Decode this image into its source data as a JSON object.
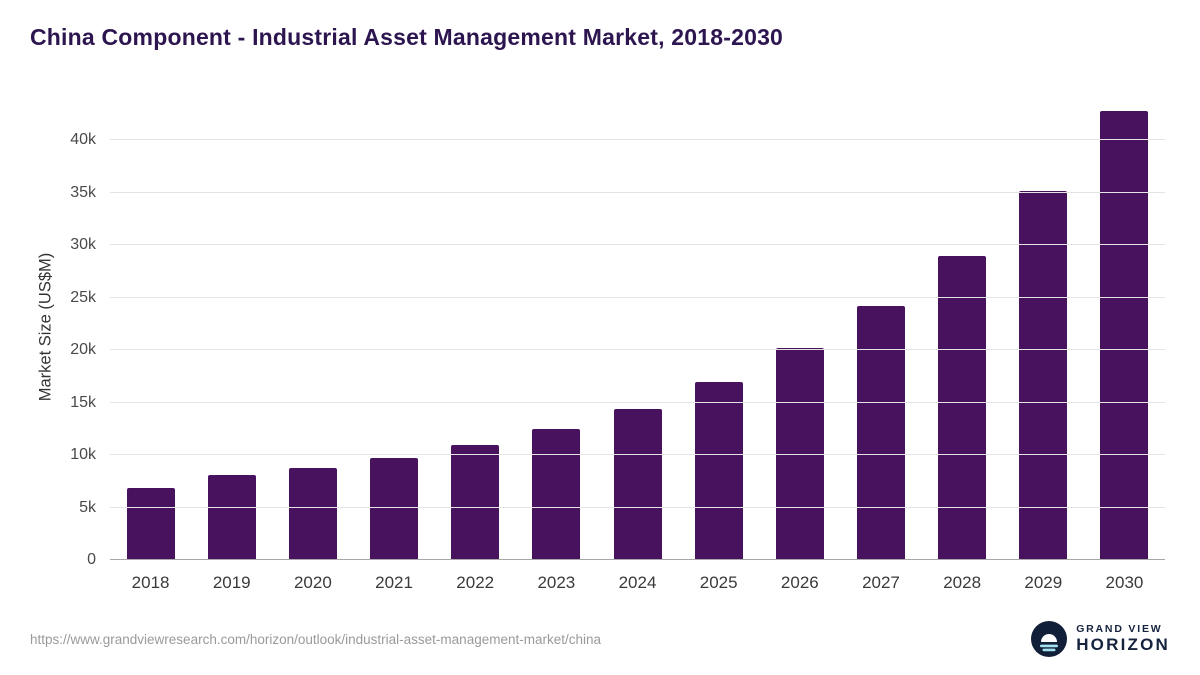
{
  "header": {
    "title": "China Component - Industrial Asset Management Market, 2018-2030"
  },
  "chart_data": {
    "type": "bar",
    "title": "China Component - Industrial Asset Management Market, 2018-2030",
    "categories": [
      "2018",
      "2019",
      "2020",
      "2021",
      "2022",
      "2023",
      "2024",
      "2025",
      "2026",
      "2027",
      "2028",
      "2029",
      "2030"
    ],
    "values": [
      6900,
      8100,
      8800,
      9700,
      11000,
      12500,
      14400,
      17000,
      20200,
      24200,
      29000,
      35200,
      42800
    ],
    "xlabel": "",
    "ylabel": "Market Size (US$M)",
    "ylim": [
      0,
      44300
    ],
    "yticks": [
      0,
      5000,
      10000,
      15000,
      20000,
      25000,
      30000,
      35000,
      40000
    ],
    "ytick_labels": [
      "0",
      "5k",
      "10k",
      "15k",
      "20k",
      "25k",
      "30k",
      "35k",
      "40k"
    ],
    "bar_color": "#48125e",
    "grid": true,
    "legend": false
  },
  "footer": {
    "source_url": "https://www.grandviewresearch.com/horizon/outlook/industrial-asset-management-market/china",
    "brand_top": "GRAND VIEW",
    "brand_bottom": "HORIZON"
  }
}
